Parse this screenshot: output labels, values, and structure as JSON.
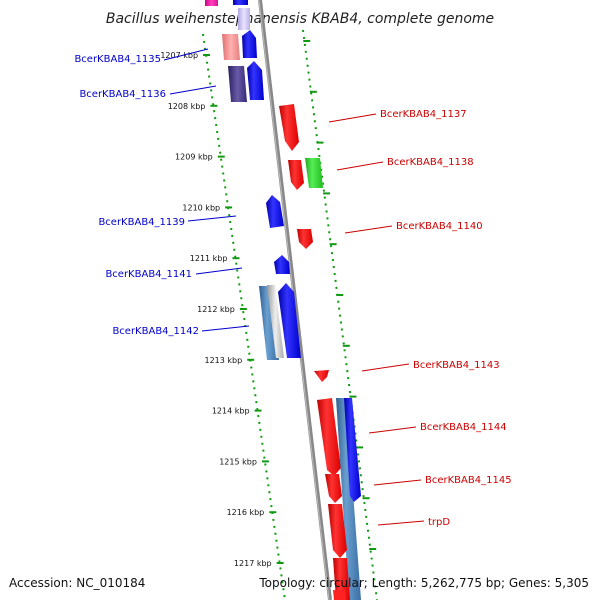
{
  "title": "Bacillus weihenstephanensis KBAB4, complete genome",
  "footer": {
    "accession": "Accession: NC_010184",
    "topology": "Topology: circular; Length: 5,262,775 bp; Genes: 5,305"
  },
  "colors": {
    "forward_gene": "#0000ff",
    "reverse_gene": "#ff0000",
    "rrna_gene": "#33cc33",
    "operon_blue": "#4682b4",
    "backbone": "#808080",
    "ruler_dots": "#119911",
    "label_left": "#0000cc",
    "label_right": "#cc0000"
  },
  "ruler": [
    "1207 kbp",
    "1208 kbp",
    "1209 kbp",
    "1210 kbp",
    "1211 kbp",
    "1212 kbp",
    "1213 kbp",
    "1214 kbp",
    "1215 kbp",
    "1216 kbp",
    "1217 kbp"
  ],
  "left_labels": [
    "BcerKBAB4_1135",
    "BcerKBAB4_1136",
    "BcerKBAB4_1139",
    "BcerKBAB4_1141",
    "BcerKBAB4_1142"
  ],
  "right_labels": [
    "BcerKBAB4_1137",
    "BcerKBAB4_1138",
    "BcerKBAB4_1140",
    "BcerKBAB4_1143",
    "BcerKBAB4_1144",
    "BcerKBAB4_1145",
    "trpD"
  ]
}
